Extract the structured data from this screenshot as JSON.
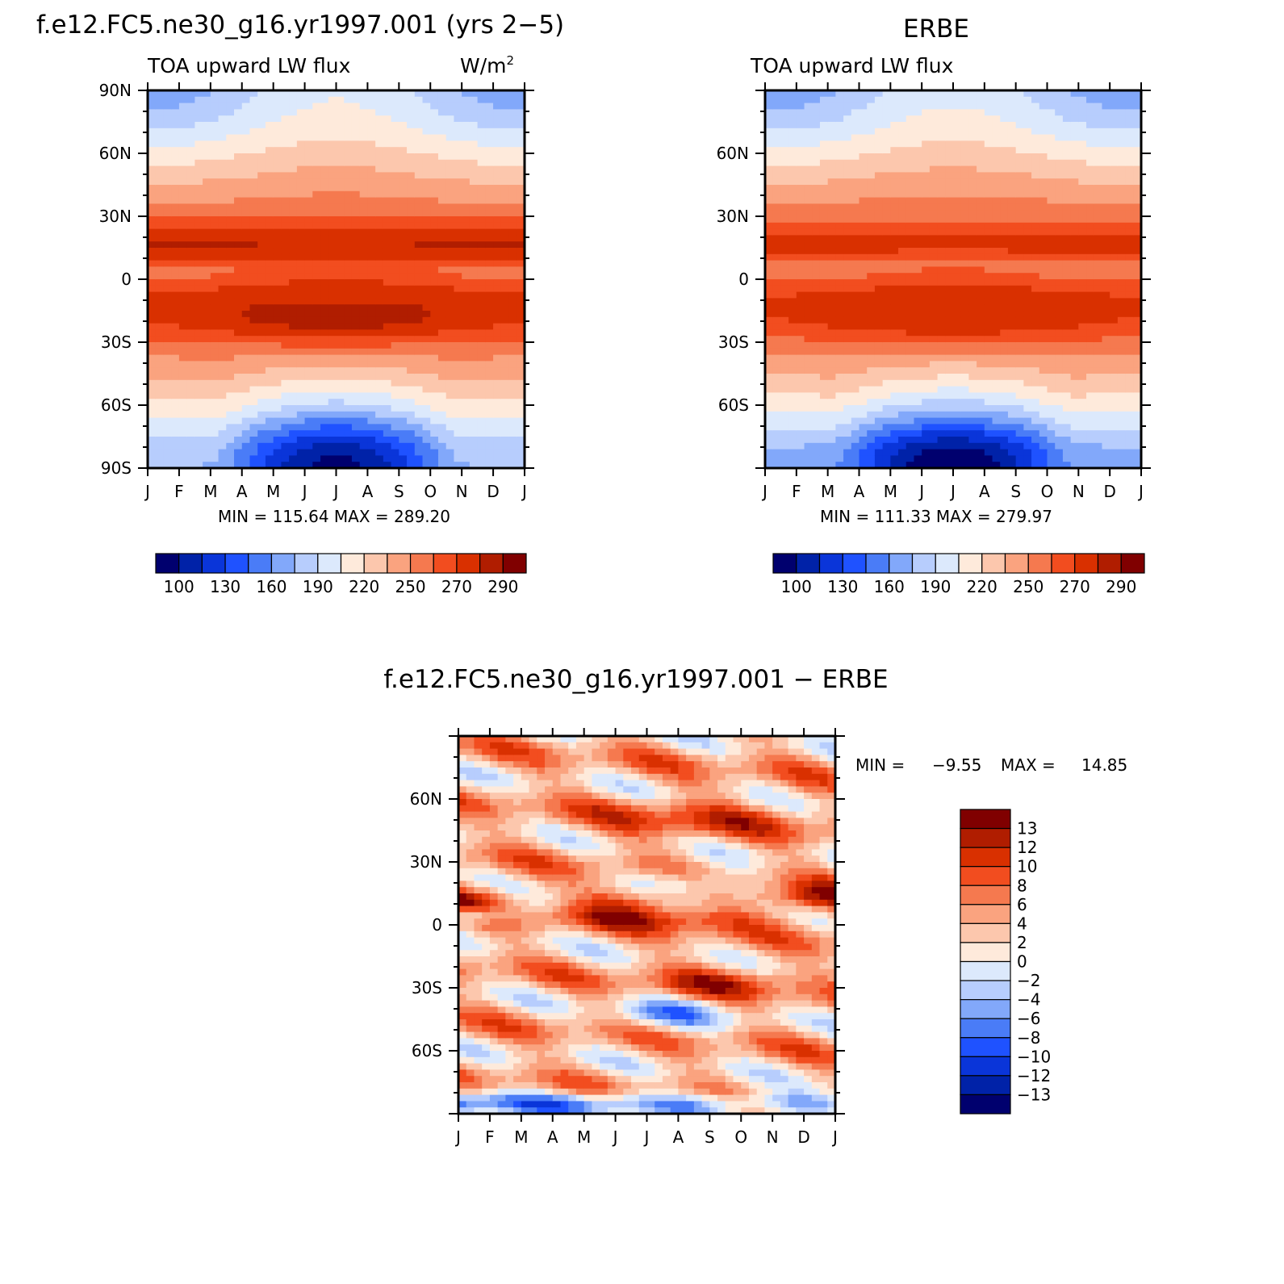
{
  "main_title": "f.e12.FC5.ne30_g16.yr1997.001 (yrs 2−5)",
  "chart_data": [
    {
      "type": "heatmap",
      "title": "f.e12.FC5.ne30_g16.yr1997.001 (yrs 2−5)",
      "left_label": "TOA upward LW flux",
      "right_label": "W/m",
      "units_sup": "2",
      "x_ticks": [
        "J",
        "F",
        "M",
        "A",
        "M",
        "J",
        "J",
        "A",
        "S",
        "O",
        "N",
        "D",
        "J"
      ],
      "y_ticks": [
        "90N",
        "60N",
        "30N",
        "0",
        "30S",
        "60S",
        "90S"
      ],
      "ylim": [
        -90,
        90
      ],
      "stats": "MIN = 115.64 MAX = 289.20",
      "min": 115.64,
      "max": 289.2,
      "levels": [
        "100",
        "130",
        "160",
        "190",
        "220",
        "250",
        "270",
        "290"
      ],
      "colors": [
        "#00006e",
        "#0022a8",
        "#0a35d9",
        "#1f52ff",
        "#4a7cf7",
        "#82a8fa",
        "#b7cdfd",
        "#dce9fc",
        "#feeadb",
        "#fcc7ad",
        "#faa37f",
        "#f5794f",
        "#f24d1f",
        "#d93000",
        "#b01d00",
        "#800000"
      ],
      "fields": {
        "polar_n": 150,
        "polar_s": 122,
        "tropics": 258,
        "itcz": 235,
        "subtrop_n": 284,
        "subtrop_s": 282
      }
    },
    {
      "type": "heatmap",
      "title": "ERBE",
      "left_label": "TOA upward LW flux",
      "right_label": "",
      "units_sup": "",
      "x_ticks": [
        "J",
        "F",
        "M",
        "A",
        "M",
        "J",
        "J",
        "A",
        "S",
        "O",
        "N",
        "D",
        "J"
      ],
      "y_ticks": [
        "60N",
        "30N",
        "0",
        "30S",
        "60S"
      ],
      "ylim": [
        -90,
        90
      ],
      "stats": "MIN = 111.33 MAX = 279.97",
      "min": 111.33,
      "max": 279.97,
      "levels": [
        "100",
        "130",
        "160",
        "190",
        "220",
        "250",
        "270",
        "290"
      ],
      "colors": [
        "#00006e",
        "#0022a8",
        "#0a35d9",
        "#1f52ff",
        "#4a7cf7",
        "#82a8fa",
        "#b7cdfd",
        "#dce9fc",
        "#feeadb",
        "#fcc7ad",
        "#faa37f",
        "#f5794f",
        "#f24d1f",
        "#d93000",
        "#b01d00",
        "#800000"
      ],
      "fields": {
        "polar_n": 148,
        "polar_s": 115,
        "tropics": 252,
        "itcz": 232,
        "subtrop_n": 275,
        "subtrop_s": 276
      }
    },
    {
      "type": "heatmap",
      "title": "f.e12.FC5.ne30_g16.yr1997.001 − ERBE",
      "x_ticks": [
        "J",
        "F",
        "M",
        "A",
        "M",
        "J",
        "J",
        "A",
        "S",
        "O",
        "N",
        "D",
        "J"
      ],
      "y_ticks": [
        "60N",
        "30N",
        "0",
        "30S",
        "60S"
      ],
      "ylim": [
        -90,
        90
      ],
      "stats_min_label": "MIN =",
      "stats_min": "−9.55",
      "stats_max_label": "MAX =",
      "stats_max": "14.85",
      "min": -9.55,
      "max": 14.85,
      "levels": [
        "13",
        "12",
        "10",
        "8",
        "6",
        "4",
        "2",
        "0",
        "−2",
        "−4",
        "−6",
        "−8",
        "−10",
        "−12",
        "−13"
      ],
      "colors": [
        "#800000",
        "#b01d00",
        "#d93000",
        "#f24d1f",
        "#f5794f",
        "#faa37f",
        "#fcc7ad",
        "#feeadb",
        "#dce9fc",
        "#b7cdfd",
        "#82a8fa",
        "#4a7cf7",
        "#1f52ff",
        "#0a35d9",
        "#0022a8",
        "#00006e"
      ]
    }
  ]
}
